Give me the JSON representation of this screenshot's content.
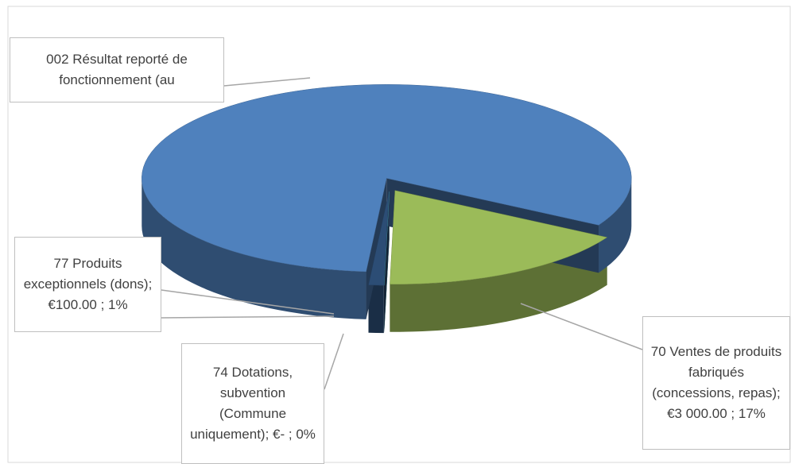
{
  "chart_data": {
    "type": "pie3d",
    "categories": [
      "70 Ventes de produits fabriqués (concessions, repas)",
      "74 Dotations, subvention (Commune uniquement)",
      "77 Produits exceptionnels (dons)",
      "002 Résultat reporté de fonctionnement (au"
    ],
    "values": [
      17,
      0,
      1,
      82
    ],
    "data_labels": [
      "70 Ventes de produits fabriqués (concessions, repas);  €3 000.00 ; 17%",
      "74 Dotations, subvention (Commune uniquement);  €- ; 0%",
      "77 Produits exceptionnels (dons);  €100.00 ; 1%",
      "002 Résultat reporté de fonctionnement (au"
    ],
    "colors": [
      "#9bbb59",
      "#4bacc6",
      "#2c4d75",
      "#4f81bd"
    ]
  }
}
